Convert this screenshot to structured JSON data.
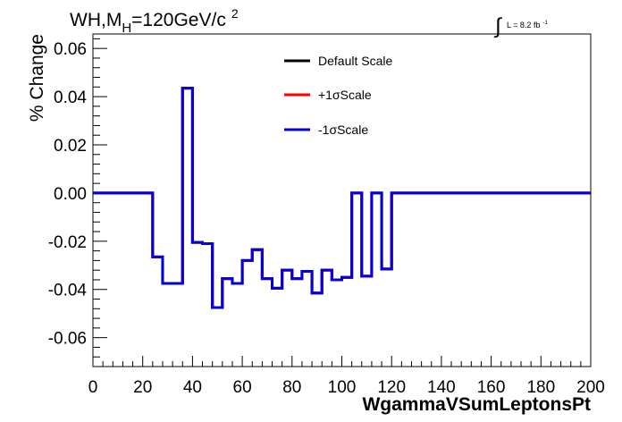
{
  "chart_data": {
    "type": "line",
    "title_main": "WH,M",
    "title_sub": "H",
    "title_rest": "=120GeV/c",
    "title_sup": "2",
    "lumi_integral": "∫",
    "lumi_text": "L = 8.2 fb",
    "lumi_sup": "-1",
    "xlabel": "WgammaVSumLeptonsPt",
    "ylabel": "% Change",
    "xlim": [
      0,
      200
    ],
    "ylim": [
      -0.072,
      0.066
    ],
    "x_ticks": [
      "0",
      "20",
      "40",
      "60",
      "80",
      "100",
      "120",
      "140",
      "160",
      "180",
      "200"
    ],
    "y_ticks": [
      "0.06",
      "0.04",
      "0.02",
      "0.00",
      "-0.02",
      "-0.04",
      "-0.06"
    ],
    "grid": false,
    "legend_position": "top-center",
    "bin_edges": [
      0,
      4,
      8,
      12,
      16,
      20,
      24,
      28,
      32,
      36,
      40,
      44,
      48,
      52,
      56,
      60,
      64,
      68,
      72,
      76,
      80,
      84,
      88,
      92,
      96,
      100,
      104,
      108,
      112,
      116,
      120,
      124,
      128,
      132,
      136,
      140,
      144,
      148,
      152,
      156,
      160,
      164,
      168,
      172,
      176,
      180,
      184,
      188,
      192,
      196,
      200
    ],
    "series": [
      {
        "name": "Default Scale",
        "color": "#000000",
        "values": [
          0,
          0,
          0,
          0,
          0,
          0,
          -0.0265,
          -0.0375,
          -0.0375,
          0.0435,
          -0.0205,
          -0.021,
          -0.0475,
          -0.0355,
          -0.0375,
          -0.028,
          -0.0235,
          -0.0355,
          -0.0395,
          -0.032,
          -0.0355,
          -0.0325,
          -0.0415,
          -0.032,
          -0.036,
          -0.035,
          0,
          -0.0345,
          0,
          -0.0315,
          0,
          0,
          0,
          0,
          0,
          0,
          0,
          0,
          0,
          0,
          0,
          0,
          0,
          0,
          0,
          0,
          0,
          0,
          0,
          0
        ]
      },
      {
        "name": "+1σScale",
        "color": "#ff0000",
        "values": [
          0,
          0,
          0,
          0,
          0,
          0,
          -0.0265,
          -0.0375,
          -0.0375,
          0.0435,
          -0.0205,
          -0.021,
          -0.0475,
          -0.0355,
          -0.0375,
          -0.028,
          -0.0235,
          -0.0355,
          -0.0395,
          -0.032,
          -0.0355,
          -0.0325,
          -0.0415,
          -0.032,
          -0.036,
          -0.035,
          0,
          -0.0345,
          0,
          -0.0315,
          0,
          0,
          0,
          0,
          0,
          0,
          0,
          0,
          0,
          0,
          0,
          0,
          0,
          0,
          0,
          0,
          0,
          0,
          0,
          0
        ]
      },
      {
        "name": "-1σScale",
        "color": "#0000dd",
        "values": [
          0,
          0,
          0,
          0,
          0,
          0,
          -0.0265,
          -0.0375,
          -0.0375,
          0.0435,
          -0.0205,
          -0.021,
          -0.0475,
          -0.0355,
          -0.0375,
          -0.028,
          -0.0235,
          -0.0355,
          -0.0395,
          -0.032,
          -0.0355,
          -0.0325,
          -0.0415,
          -0.032,
          -0.036,
          -0.035,
          0,
          -0.0345,
          0,
          -0.0315,
          0,
          0,
          0,
          0,
          0,
          0,
          0,
          0,
          0,
          0,
          0,
          0,
          0,
          0,
          0,
          0,
          0,
          0,
          0,
          0
        ]
      }
    ]
  }
}
